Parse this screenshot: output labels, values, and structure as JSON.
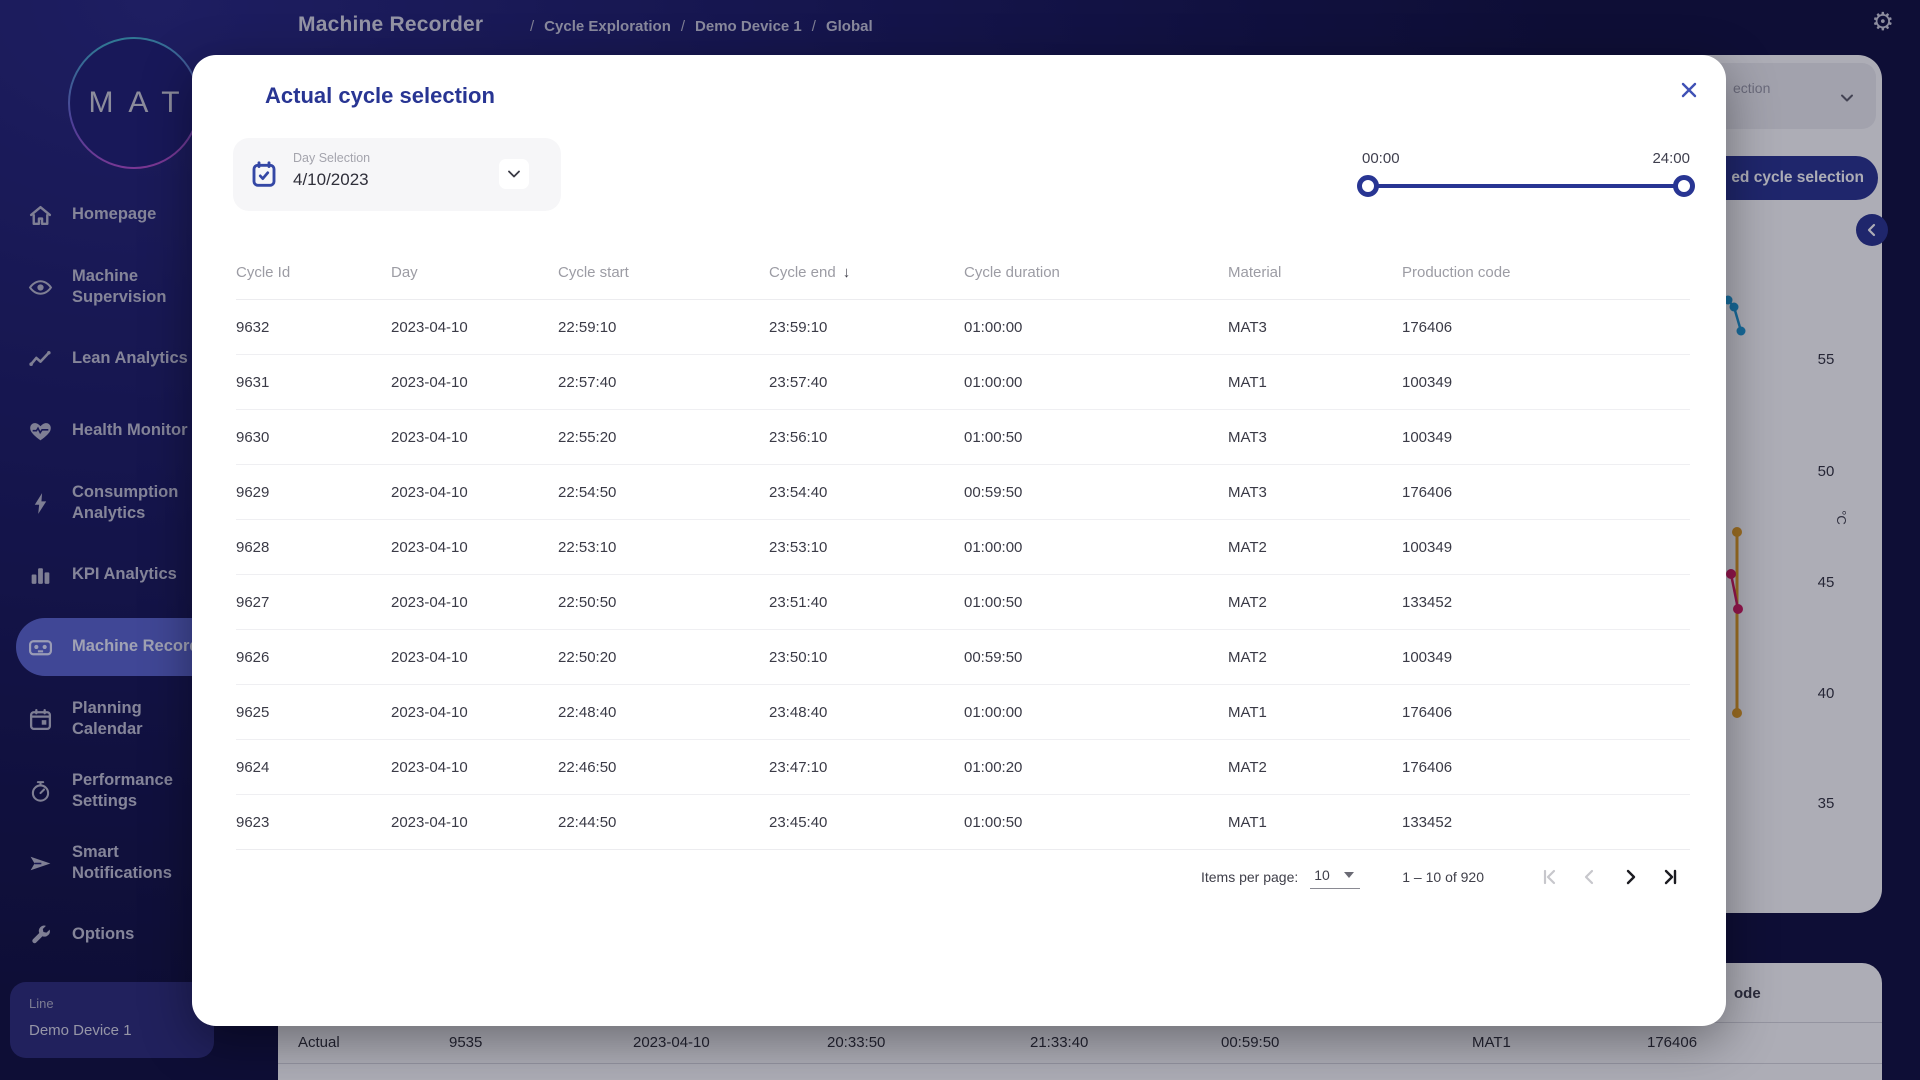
{
  "header": {
    "title": "Machine Recorder",
    "breadcrumbs": [
      "Cycle Exploration",
      "Demo Device 1",
      "Global"
    ]
  },
  "logo_text": "MAT",
  "sidebar": {
    "items": [
      {
        "label": "Homepage",
        "icon": "home",
        "active": false
      },
      {
        "label": "Machine\nSupervision",
        "icon": "eye",
        "active": false
      },
      {
        "label": "Lean Analytics",
        "icon": "trend",
        "active": false
      },
      {
        "label": "Health Monitor",
        "icon": "heart",
        "active": false
      },
      {
        "label": "Consumption\nAnalytics",
        "icon": "bolt",
        "active": false
      },
      {
        "label": "KPI Analytics",
        "icon": "bar-chart",
        "active": false
      },
      {
        "label": "Machine Recorder",
        "icon": "recorder",
        "active": true
      },
      {
        "label": "Planning\nCalendar",
        "icon": "calendar",
        "active": false
      },
      {
        "label": "Performance\nSettings",
        "icon": "gauge",
        "active": false
      },
      {
        "label": "Smart\nNotifications",
        "icon": "send",
        "active": false
      },
      {
        "label": "Options",
        "icon": "wrench",
        "active": false
      }
    ],
    "device": {
      "label": "Line",
      "value": "Demo Device 1"
    }
  },
  "modal": {
    "title": "Actual cycle selection",
    "day_selection": {
      "label": "Day Selection",
      "value": "4/10/2023"
    },
    "slider": {
      "start": "00:00",
      "end": "24:00"
    },
    "table": {
      "columns": [
        "Cycle Id",
        "Day",
        "Cycle start",
        "Cycle end",
        "Cycle duration",
        "Material",
        "Production code"
      ],
      "sorted_column": "Cycle end",
      "rows": [
        [
          "9632",
          "2023-04-10",
          "22:59:10",
          "23:59:10",
          "01:00:00",
          "MAT3",
          "176406"
        ],
        [
          "9631",
          "2023-04-10",
          "22:57:40",
          "23:57:40",
          "01:00:00",
          "MAT1",
          "100349"
        ],
        [
          "9630",
          "2023-04-10",
          "22:55:20",
          "23:56:10",
          "01:00:50",
          "MAT3",
          "100349"
        ],
        [
          "9629",
          "2023-04-10",
          "22:54:50",
          "23:54:40",
          "00:59:50",
          "MAT3",
          "176406"
        ],
        [
          "9628",
          "2023-04-10",
          "22:53:10",
          "23:53:10",
          "01:00:00",
          "MAT2",
          "100349"
        ],
        [
          "9627",
          "2023-04-10",
          "22:50:50",
          "23:51:40",
          "01:00:50",
          "MAT2",
          "133452"
        ],
        [
          "9626",
          "2023-04-10",
          "22:50:20",
          "23:50:10",
          "00:59:50",
          "MAT2",
          "100349"
        ],
        [
          "9625",
          "2023-04-10",
          "22:48:40",
          "23:48:40",
          "01:00:00",
          "MAT1",
          "176406"
        ],
        [
          "9624",
          "2023-04-10",
          "22:46:50",
          "23:47:10",
          "01:00:20",
          "MAT2",
          "176406"
        ],
        [
          "9623",
          "2023-04-10",
          "22:44:50",
          "23:45:40",
          "01:00:50",
          "MAT1",
          "133452"
        ]
      ]
    },
    "pagination": {
      "items_per_page_label": "Items per page:",
      "items_per_page": "10",
      "range": "1 – 10 of 920"
    }
  },
  "background": {
    "dropdown_partial_label": "ection",
    "button_partial_label": "ed cycle selection",
    "axis_labels": [
      "55",
      "50",
      "45",
      "40",
      "35"
    ],
    "unit": "°C",
    "bottom_header_partial": "ode",
    "bottom_row": [
      "Actual",
      "9535",
      "2023-04-10",
      "20:33:50",
      "21:33:40",
      "00:59:50",
      "MAT1",
      "176406"
    ]
  },
  "colors": {
    "accent_indigo": "#283593",
    "active_nav": "#5a64cf",
    "chart_blue": "#1e9cd7",
    "chart_orange": "#e6a020",
    "chart_pink": "#d81b60"
  }
}
